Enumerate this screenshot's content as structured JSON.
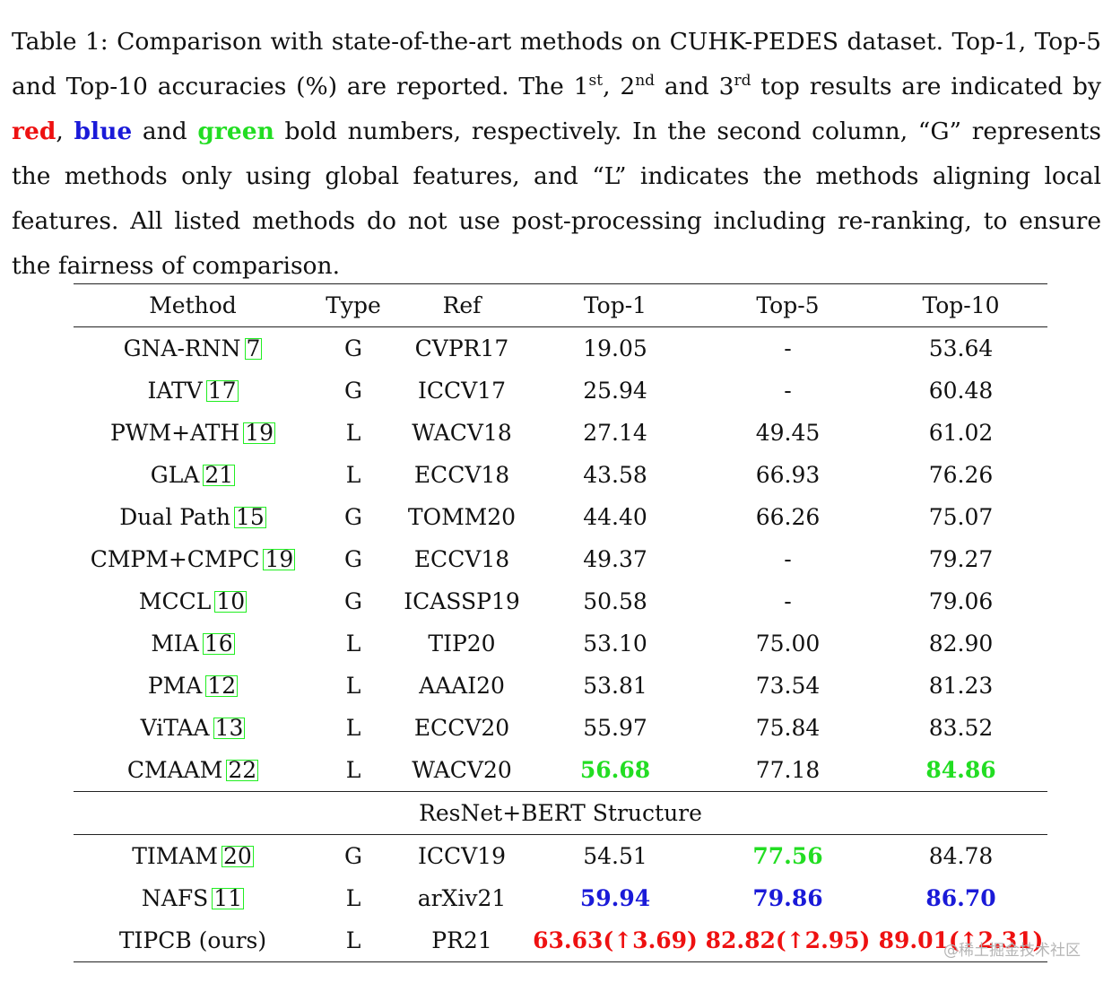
{
  "caption": {
    "prefix": "Table 1: Comparison with state-of-the-art methods on CUHK-PEDES dataset. Top-1, Top-5 and Top-10 accuracies (%) are reported. The 1",
    "sup1": "st",
    "mid1": ", 2",
    "sup2": "nd",
    "mid2": " and 3",
    "sup3": "rd",
    "mid3": " top results are indicated by ",
    "red_word": "red",
    "comma": ", ",
    "blue_word": "blue",
    "and_word": " and ",
    "green_word": "green",
    "suffix": " bold numbers, respectively. In the second column, “G” represents the methods only using global features, and “L” indicates the methods aligning local features. All listed methods do not use post-processing including re-ranking, to ensure the fairness of comparison."
  },
  "table": {
    "headers": [
      "Method",
      "Type",
      "Ref",
      "Top-1",
      "Top-5",
      "Top-10"
    ],
    "section_label": "ResNet+BERT Structure",
    "rows": [
      {
        "method": "GNA-RNN",
        "cite": "7",
        "type": "G",
        "ref": "CVPR17",
        "top1": "19.05",
        "top5": "-",
        "top10": "53.64"
      },
      {
        "method": "IATV",
        "cite": "17",
        "type": "G",
        "ref": "ICCV17",
        "top1": "25.94",
        "top5": "-",
        "top10": "60.48"
      },
      {
        "method": "PWM+ATH",
        "cite": "19",
        "type": "L",
        "ref": "WACV18",
        "top1": "27.14",
        "top5": "49.45",
        "top10": "61.02"
      },
      {
        "method": "GLA",
        "cite": "21",
        "type": "L",
        "ref": "ECCV18",
        "top1": "43.58",
        "top5": "66.93",
        "top10": "76.26"
      },
      {
        "method": "Dual Path",
        "cite": "15",
        "type": "G",
        "ref": "TOMM20",
        "top1": "44.40",
        "top5": "66.26",
        "top10": "75.07"
      },
      {
        "method": "CMPM+CMPC",
        "cite": "19",
        "type": "G",
        "ref": "ECCV18",
        "top1": "49.37",
        "top5": "-",
        "top10": "79.27"
      },
      {
        "method": "MCCL",
        "cite": "10",
        "type": "G",
        "ref": "ICASSP19",
        "top1": "50.58",
        "top5": "-",
        "top10": "79.06"
      },
      {
        "method": "MIA",
        "cite": "16",
        "type": "L",
        "ref": "TIP20",
        "top1": "53.10",
        "top5": "75.00",
        "top10": "82.90"
      },
      {
        "method": "PMA",
        "cite": "12",
        "type": "L",
        "ref": "AAAI20",
        "top1": "53.81",
        "top5": "73.54",
        "top10": "81.23"
      },
      {
        "method": "ViTAA",
        "cite": "13",
        "type": "L",
        "ref": "ECCV20",
        "top1": "55.97",
        "top5": "75.84",
        "top10": "83.52"
      },
      {
        "method": "CMAAM",
        "cite": "22",
        "type": "L",
        "ref": "WACV20",
        "top1": "56.68",
        "top5": "77.18",
        "top10": "84.86"
      }
    ],
    "rows2": [
      {
        "method": "TIMAM",
        "cite": "20",
        "type": "G",
        "ref": "ICCV19",
        "top1": "54.51",
        "top5": "77.56",
        "top10": "84.78"
      },
      {
        "method": "NAFS",
        "cite": "11",
        "type": "L",
        "ref": "arXiv21",
        "top1": "59.94",
        "top5": "79.86",
        "top10": "86.70"
      },
      {
        "method": "TIPCB (ours)",
        "cite": "",
        "type": "L",
        "ref": "PR21",
        "top1": "63.63(↑3.69)",
        "top5": "82.82(↑2.95)",
        "top10": "89.01(↑2.31)"
      }
    ]
  },
  "colors": {
    "first": "#ee1111",
    "second": "#1a1ad8",
    "third": "#22dd22",
    "cite_box": "#22ee22"
  },
  "watermark": "@稀土掘金技术社区"
}
